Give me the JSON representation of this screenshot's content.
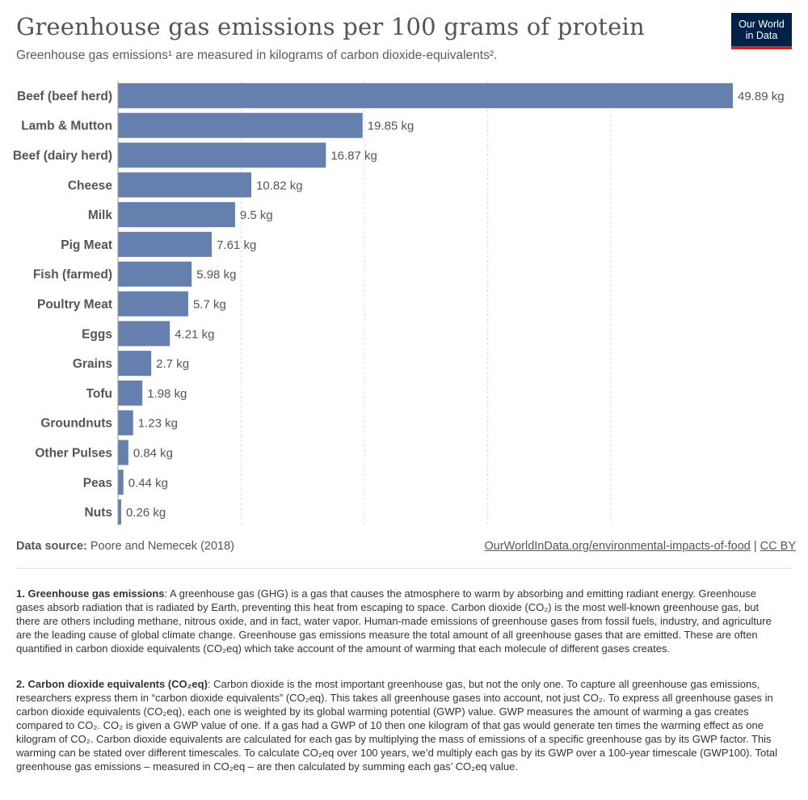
{
  "header": {
    "title": "Greenhouse gas emissions per 100 grams of protein",
    "subtitle": "Greenhouse gas emissions¹ are measured in kilograms of carbon dioxide-equivalents².",
    "logo_line1": "Our World",
    "logo_line2": "in Data"
  },
  "colors": {
    "bar": "#6580ae",
    "grid": "#dddddd",
    "axis": "#999999",
    "logo_bg": "#002147",
    "logo_accent": "#ce261e"
  },
  "chart_data": {
    "type": "bar",
    "orientation": "horizontal",
    "categories": [
      "Beef (beef herd)",
      "Lamb & Mutton",
      "Beef (dairy herd)",
      "Cheese",
      "Milk",
      "Pig Meat",
      "Fish (farmed)",
      "Poultry Meat",
      "Eggs",
      "Grains",
      "Tofu",
      "Groundnuts",
      "Other Pulses",
      "Peas",
      "Nuts"
    ],
    "values": [
      49.89,
      19.85,
      16.87,
      10.82,
      9.5,
      7.61,
      5.98,
      5.7,
      4.21,
      2.7,
      1.98,
      1.23,
      0.84,
      0.44,
      0.26
    ],
    "labels": [
      "49.89 kg",
      "19.85 kg",
      "16.87 kg",
      "10.82 kg",
      "9.5 kg",
      "7.61 kg",
      "5.98 kg",
      "5.7 kg",
      "4.21 kg",
      "2.7 kg",
      "1.98 kg",
      "1.23 kg",
      "0.84 kg",
      "0.44 kg",
      "0.26 kg"
    ],
    "unit": "kg",
    "xlim": [
      0,
      49.89
    ],
    "gridlines": [
      10,
      20,
      30,
      40
    ],
    "grid": true
  },
  "footer": {
    "source_label": "Data source:",
    "source_text": "Poore and Nemecek (2018)",
    "link_text": "OurWorldInData.org/environmental-impacts-of-food",
    "separator": " | ",
    "license": "CC BY"
  },
  "notes": [
    {
      "heading": "1. Greenhouse gas emissions",
      "text": ": A greenhouse gas (GHG) is a gas that causes the atmosphere to warm by absorbing and emitting radiant energy. Greenhouse gases absorb radiation that is radiated by Earth, preventing this heat from escaping to space. Carbon dioxide (CO₂) is the most well-known greenhouse gas, but there are others including methane, nitrous oxide, and in fact, water vapor. Human-made emissions of greenhouse gases from fossil fuels, industry, and agriculture are the leading cause of global climate change. Greenhouse gas emissions measure the total amount of all greenhouse gases that are emitted. These are often quantified in carbon dioxide equivalents (CO₂eq) which take account of the amount of warming that each molecule of different gases creates."
    },
    {
      "heading": "2. Carbon dioxide equivalents (CO₂eq)",
      "text": ": Carbon dioxide is the most important greenhouse gas, but not the only one. To capture all greenhouse gas emissions, researchers express them in “carbon dioxide equivalents” (CO₂eq). This takes all greenhouse gases into account, not just CO₂. To express all greenhouse gases in carbon dioxide equivalents (CO₂eq), each one is weighted by its global warming potential (GWP) value. GWP measures the amount of warming a gas creates compared to CO₂. CO₂ is given a GWP value of one. If a gas had a GWP of 10 then one kilogram of that gas would generate ten times the warming effect as one kilogram of CO₂. Carbon dioxide equivalents are calculated for each gas by multiplying the mass of emissions of a specific greenhouse gas by its GWP factor. This warming can be stated over different timescales. To calculate CO₂eq over 100 years, we’d multiply each gas by its GWP over a 100-year timescale (GWP100). Total greenhouse gas emissions – measured in CO₂eq – are then calculated by summing each gas’ CO₂eq value."
    }
  ]
}
